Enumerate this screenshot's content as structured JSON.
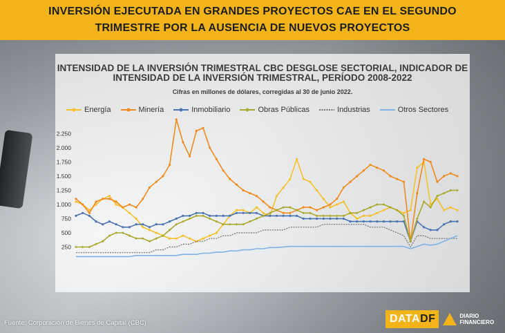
{
  "header": {
    "line1": "INVERSIÓN EJECUTADA EN GRANDES PROYECTOS CAE EN EL SEGUNDO",
    "line2": "TRIMESTRE POR LA AUSENCIA DE NUEVOS PROYECTOS"
  },
  "source": "Fuente: Corporación de Bienes de Capital (CBC)",
  "logo": {
    "data_text": "DATA",
    "df_text": "DF",
    "brand_line1": "DIARIO",
    "brand_line2": "FINANCIERO"
  },
  "colors": {
    "header_bg": "#f3b41a",
    "energia": "#f5c02a",
    "mineria": "#f08a1c",
    "inmobiliario": "#4a72b0",
    "obras_publicas": "#aaa82a",
    "industrias": "#6e6e6e",
    "otros_sectores": "#7fb2e5"
  },
  "chart_data": {
    "type": "line",
    "title_line1": "INTENSIDAD DE LA INVERSIÓN TRIMESTRAL CBC DESGLOSE SECTORIAL, INDICADOR DE",
    "title_line2": "INTENSIDAD DE LA INVERSIÓN TRIMESTRAL, PERÍODO 2008-2022",
    "subtitle": "Cifras en millones de dólares, corregidas al 30 de junio 2022.",
    "xlabel": "",
    "ylabel": "",
    "ylim": [
      0,
      2500
    ],
    "yticks": [
      250,
      500,
      750,
      1000,
      1250,
      1500,
      1750,
      2000,
      2250
    ],
    "ytick_labels": [
      "250",
      "500",
      "750",
      "1.000",
      "1.250",
      "1.500",
      "1.750",
      "2.000",
      "2.250"
    ],
    "grid": false,
    "legend_position": "top",
    "n_points": 58,
    "series": [
      {
        "name": "Energía",
        "color": "#f5c02a",
        "marker": "circle",
        "values": [
          1050,
          1000,
          900,
          1000,
          1100,
          1150,
          1000,
          950,
          850,
          750,
          600,
          550,
          500,
          450,
          400,
          400,
          450,
          400,
          350,
          400,
          450,
          500,
          650,
          800,
          900,
          900,
          850,
          950,
          850,
          800,
          1150,
          1300,
          1450,
          1800,
          1450,
          1400,
          1250,
          1100,
          950,
          1000,
          1050,
          850,
          750,
          800,
          800,
          850,
          900,
          950,
          900,
          850,
          900,
          1650,
          1750,
          1000,
          1100,
          900,
          950,
          900
        ]
      },
      {
        "name": "Minería",
        "color": "#f08a1c",
        "marker": "circle",
        "values": [
          1100,
          1000,
          850,
          1050,
          1100,
          1100,
          1050,
          950,
          1000,
          950,
          1100,
          1300,
          1400,
          1500,
          1700,
          2500,
          2100,
          1850,
          2300,
          2350,
          2000,
          1800,
          1600,
          1450,
          1350,
          1250,
          1200,
          1150,
          1050,
          950,
          900,
          850,
          850,
          900,
          950,
          950,
          900,
          950,
          1000,
          1100,
          1300,
          1400,
          1500,
          1600,
          1700,
          1650,
          1600,
          1500,
          1450,
          1400,
          350,
          1200,
          1800,
          1750,
          1400,
          1500,
          1550,
          1500
        ]
      },
      {
        "name": "Inmobiliario",
        "color": "#4a72b0",
        "marker": "circle",
        "values": [
          800,
          850,
          800,
          700,
          650,
          700,
          650,
          600,
          600,
          650,
          650,
          600,
          650,
          650,
          700,
          750,
          800,
          800,
          850,
          850,
          800,
          800,
          800,
          800,
          850,
          850,
          850,
          850,
          800,
          800,
          800,
          800,
          800,
          800,
          750,
          750,
          750,
          750,
          750,
          750,
          750,
          700,
          700,
          700,
          700,
          700,
          700,
          700,
          700,
          700,
          350,
          700,
          600,
          550,
          550,
          650,
          700,
          700
        ]
      },
      {
        "name": "Obras Públicas",
        "color": "#aaa82a",
        "marker": "diamond",
        "values": [
          250,
          250,
          250,
          300,
          350,
          450,
          500,
          500,
          450,
          400,
          400,
          350,
          400,
          450,
          550,
          650,
          700,
          750,
          800,
          800,
          750,
          700,
          650,
          650,
          650,
          650,
          700,
          750,
          800,
          850,
          900,
          950,
          950,
          900,
          850,
          850,
          800,
          800,
          800,
          800,
          800,
          850,
          850,
          900,
          950,
          1000,
          1000,
          950,
          900,
          800,
          350,
          750,
          1050,
          950,
          1150,
          1200,
          1250,
          1250
        ]
      },
      {
        "name": "Industrias",
        "color": "#6e6e6e",
        "marker": "dot",
        "values": [
          150,
          150,
          150,
          150,
          150,
          150,
          150,
          150,
          150,
          150,
          150,
          150,
          200,
          200,
          250,
          250,
          300,
          300,
          350,
          350,
          400,
          400,
          450,
          450,
          500,
          500,
          500,
          500,
          550,
          550,
          550,
          550,
          600,
          600,
          600,
          600,
          600,
          650,
          650,
          650,
          650,
          650,
          650,
          650,
          600,
          600,
          600,
          550,
          500,
          450,
          250,
          450,
          450,
          400,
          400,
          400,
          400,
          400
        ]
      },
      {
        "name": "Otros Sectores",
        "color": "#7fb2e5",
        "marker": "none",
        "values": [
          80,
          80,
          80,
          80,
          80,
          80,
          80,
          80,
          80,
          100,
          100,
          100,
          100,
          100,
          100,
          100,
          120,
          120,
          120,
          140,
          140,
          160,
          160,
          180,
          180,
          200,
          200,
          220,
          220,
          240,
          240,
          250,
          260,
          260,
          260,
          260,
          260,
          260,
          260,
          260,
          260,
          260,
          260,
          260,
          260,
          260,
          260,
          260,
          260,
          260,
          220,
          260,
          300,
          280,
          300,
          350,
          400,
          450
        ]
      }
    ]
  }
}
